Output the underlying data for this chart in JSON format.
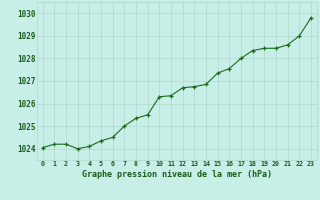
{
  "x": [
    0,
    1,
    2,
    3,
    4,
    5,
    6,
    7,
    8,
    9,
    10,
    11,
    12,
    13,
    14,
    15,
    16,
    17,
    18,
    19,
    20,
    21,
    22,
    23
  ],
  "y": [
    1024.05,
    1024.2,
    1024.2,
    1024.0,
    1024.1,
    1024.35,
    1024.5,
    1025.0,
    1025.35,
    1025.5,
    1026.3,
    1026.35,
    1026.7,
    1026.75,
    1026.85,
    1027.35,
    1027.55,
    1028.0,
    1028.35,
    1028.45,
    1028.45,
    1028.6,
    1029.0,
    1029.8
  ],
  "line_color": "#1a6b1a",
  "marker_color": "#1a6b1a",
  "bg_color": "#c8eee8",
  "grid_color": "#b0d8cc",
  "xlabel": "Graphe pression niveau de la mer (hPa)",
  "tick_label_color": "#1a5c1a",
  "ytick_labels": [
    1024,
    1025,
    1026,
    1027,
    1028,
    1029,
    1030
  ],
  "ylim": [
    1023.5,
    1030.5
  ],
  "xlim": [
    -0.5,
    23.5
  ],
  "xtick_labels": [
    "0",
    "1",
    "2",
    "3",
    "4",
    "5",
    "6",
    "7",
    "8",
    "9",
    "10",
    "11",
    "12",
    "13",
    "14",
    "15",
    "16",
    "17",
    "18",
    "19",
    "20",
    "21",
    "22",
    "23"
  ],
  "figsize": [
    3.2,
    2.0
  ],
  "dpi": 100
}
